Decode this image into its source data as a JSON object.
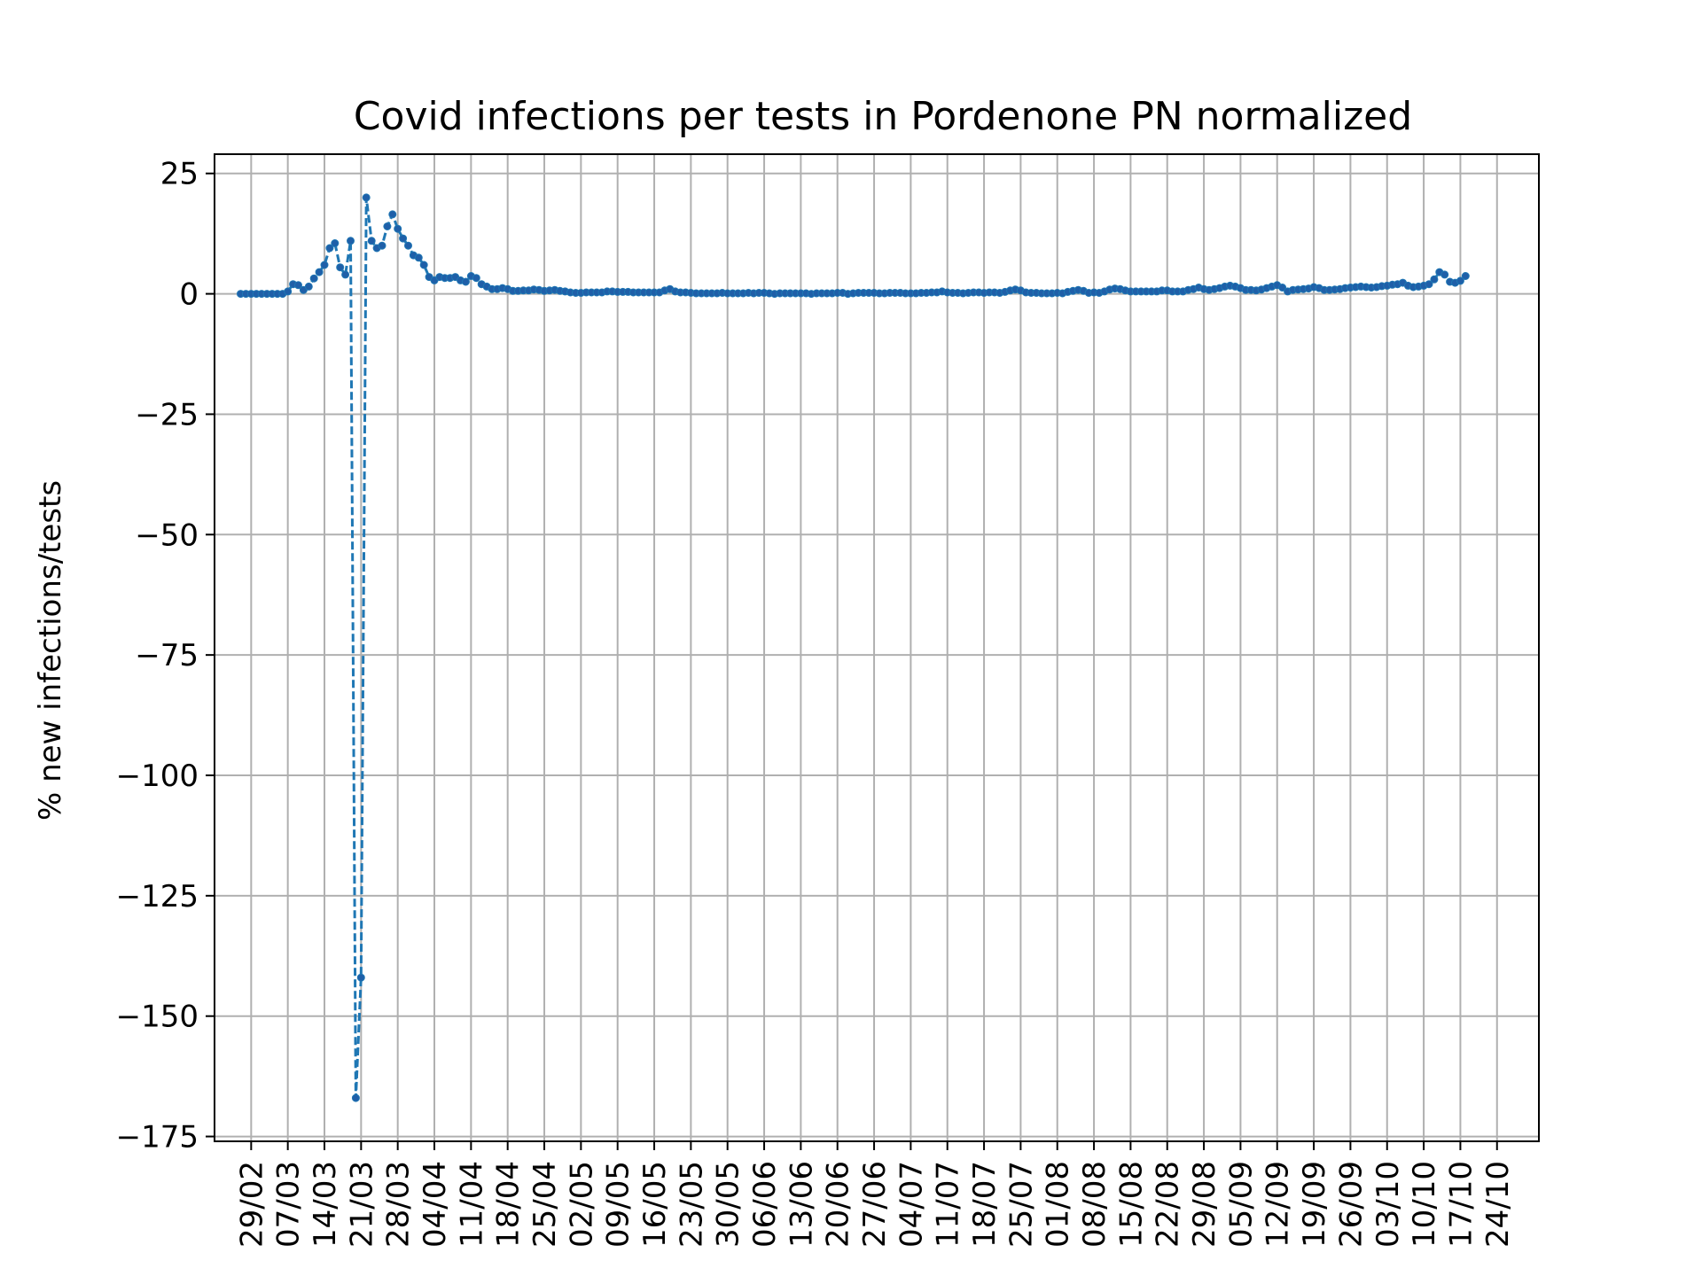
{
  "chart_data": {
    "type": "line",
    "title": "Covid infections per tests in Pordenone PN normalized",
    "xlabel": "",
    "ylabel": "% new infections/tests",
    "ylim": [
      -176,
      29
    ],
    "yticks": [
      25,
      0,
      -25,
      -50,
      -75,
      -100,
      -125,
      -150,
      -175
    ],
    "ytick_labels": [
      "25",
      "0",
      "−25",
      "−50",
      "−75",
      "−100",
      "−125",
      "−150",
      "−175"
    ],
    "xlim": [
      "2020-02-22",
      "2020-11-01"
    ],
    "xticks": [
      "2020-02-29",
      "2020-03-07",
      "2020-03-14",
      "2020-03-21",
      "2020-03-28",
      "2020-04-04",
      "2020-04-11",
      "2020-04-18",
      "2020-04-25",
      "2020-05-02",
      "2020-05-09",
      "2020-05-16",
      "2020-05-23",
      "2020-05-30",
      "2020-06-06",
      "2020-06-13",
      "2020-06-20",
      "2020-06-27",
      "2020-07-04",
      "2020-07-11",
      "2020-07-18",
      "2020-07-25",
      "2020-08-01",
      "2020-08-08",
      "2020-08-15",
      "2020-08-22",
      "2020-08-29",
      "2020-09-05",
      "2020-09-12",
      "2020-09-19",
      "2020-09-26",
      "2020-10-03",
      "2020-10-10",
      "2020-10-17",
      "2020-10-24"
    ],
    "xtick_labels": [
      "29/02",
      "07/03",
      "14/03",
      "21/03",
      "28/03",
      "04/04",
      "11/04",
      "18/04",
      "25/04",
      "02/05",
      "09/05",
      "16/05",
      "23/05",
      "30/05",
      "06/06",
      "13/06",
      "20/06",
      "27/06",
      "04/07",
      "11/07",
      "18/07",
      "25/07",
      "01/08",
      "08/08",
      "15/08",
      "22/08",
      "29/08",
      "05/09",
      "12/09",
      "19/09",
      "26/09",
      "03/10",
      "10/10",
      "17/10",
      "24/10"
    ],
    "grid": true,
    "line_color": "#1f77b4",
    "marker_color": "#1f5fa8",
    "series": [
      {
        "name": "",
        "start_date": "2020-02-27",
        "values": [
          0,
          0,
          0,
          0,
          0,
          0,
          0,
          0,
          0,
          0.5,
          2,
          1.8,
          0.8,
          1.5,
          3.2,
          4.5,
          6,
          9.5,
          10.5,
          5.5,
          4,
          11,
          -167,
          -142,
          20,
          11,
          9.5,
          10,
          14,
          16.5,
          13.5,
          11.5,
          10,
          8,
          7.5,
          6,
          3.5,
          2.8,
          3.5,
          3.3,
          3.3,
          3.5,
          2.8,
          2.5,
          3.7,
          3.3,
          2,
          1.5,
          1,
          1,
          1.2,
          1,
          0.6,
          0.6,
          0.7,
          0.7,
          0.9,
          0.8,
          0.6,
          0.7,
          0.8,
          0.6,
          0.5,
          0.3,
          0.2,
          0.2,
          0.3,
          0.3,
          0.3,
          0.3,
          0.5,
          0.5,
          0.4,
          0.4,
          0.4,
          0.3,
          0.3,
          0.3,
          0.3,
          0.3,
          0.3,
          0.7,
          1,
          0.5,
          0.3,
          0.3,
          0.2,
          0.1,
          0.1,
          0.1,
          0.1,
          0.1,
          0.2,
          0.1,
          0.1,
          0.1,
          0.1,
          0.2,
          0.1,
          0.2,
          0.2,
          0.1,
          0,
          0.1,
          0.1,
          0.1,
          0.1,
          0.1,
          0.1,
          0,
          0.1,
          0.1,
          0.1,
          0.1,
          0.2,
          0.2,
          0,
          0.1,
          0.2,
          0.2,
          0.2,
          0.2,
          0.1,
          0.1,
          0.2,
          0.2,
          0.2,
          0.1,
          0.1,
          0.1,
          0.2,
          0.2,
          0.3,
          0.3,
          0.5,
          0.3,
          0.2,
          0.2,
          0.1,
          0.2,
          0.3,
          0.3,
          0.2,
          0.3,
          0.3,
          0.2,
          0.4,
          0.7,
          0.9,
          0.7,
          0.3,
          0.2,
          0.2,
          0.1,
          0.1,
          0.1,
          0.2,
          0.1,
          0.4,
          0.6,
          0.8,
          0.6,
          0.2,
          0.3,
          0.2,
          0.5,
          0.9,
          1.1,
          1,
          0.7,
          0.5,
          0.5,
          0.5,
          0.5,
          0.5,
          0.5,
          0.7,
          0.7,
          0.5,
          0.5,
          0.5,
          0.8,
          1,
          1.3,
          1,
          0.8,
          1,
          1.2,
          1.5,
          1.7,
          1.5,
          1.2,
          0.8,
          0.8,
          0.7,
          0.9,
          1.2,
          1.5,
          1.8,
          1.3,
          0.5,
          0.8,
          0.9,
          1,
          1.1,
          1.4,
          1.2,
          0.8,
          0.8,
          0.9,
          1,
          1.2,
          1.3,
          1.4,
          1.5,
          1.4,
          1.3,
          1.4,
          1.6,
          1.7,
          1.9,
          2,
          2.3,
          1.7,
          1.4,
          1.5,
          1.7,
          2,
          3,
          4.5,
          4,
          2.5,
          2.3,
          2.7,
          3.7
        ]
      }
    ]
  }
}
